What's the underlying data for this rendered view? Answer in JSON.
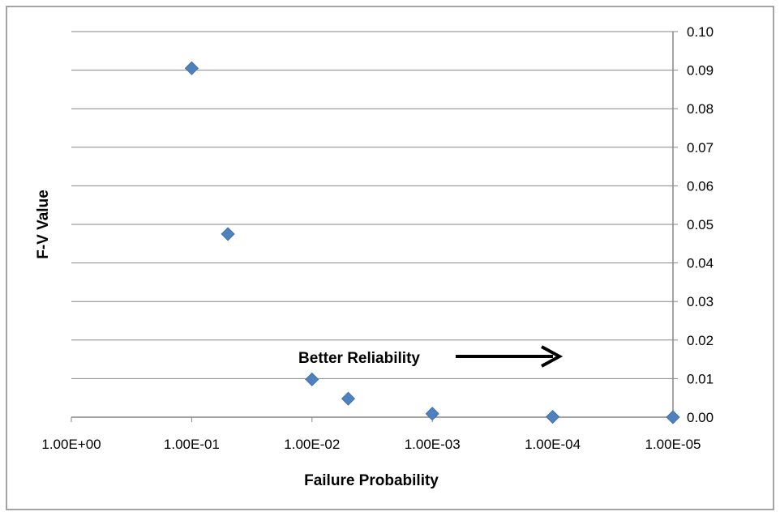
{
  "chart_data": {
    "type": "scatter",
    "title": "",
    "xlabel": "Failure Probability",
    "ylabel": "F-V Value",
    "x_scale": "log",
    "x_reversed": true,
    "xlim": [
      1,
      1e-05
    ],
    "ylim": [
      0,
      0.1
    ],
    "y_axis_position": "right",
    "x_tick_labels": [
      "1.00E+00",
      "1.00E-01",
      "1.00E-02",
      "1.00E-03",
      "1.00E-04",
      "1.00E-05"
    ],
    "x_ticks": [
      1,
      0.1,
      0.01,
      0.001,
      0.0001,
      1e-05
    ],
    "y_tick_labels": [
      "0.00",
      "0.01",
      "0.02",
      "0.03",
      "0.04",
      "0.05",
      "0.06",
      "0.07",
      "0.08",
      "0.09",
      "0.10"
    ],
    "y_ticks": [
      0,
      0.01,
      0.02,
      0.03,
      0.04,
      0.05,
      0.06,
      0.07,
      0.08,
      0.09,
      0.1
    ],
    "grid": true,
    "series": [
      {
        "points": [
          {
            "x": 0.1,
            "y": 0.0905
          },
          {
            "x": 0.05,
            "y": 0.0475
          },
          {
            "x": 0.01,
            "y": 0.0098
          },
          {
            "x": 0.005,
            "y": 0.0048
          },
          {
            "x": 0.001,
            "y": 0.0009
          },
          {
            "x": 0.0001,
            "y": 0.0001
          },
          {
            "x": 1e-05,
            "y": 0.0
          }
        ]
      }
    ],
    "annotations": [
      {
        "text": "Better Reliability",
        "arrow": "right"
      }
    ],
    "colors": {
      "marker": "#4F81BD",
      "grid": "#868686",
      "axis": "#868686",
      "border": "#868686"
    }
  }
}
